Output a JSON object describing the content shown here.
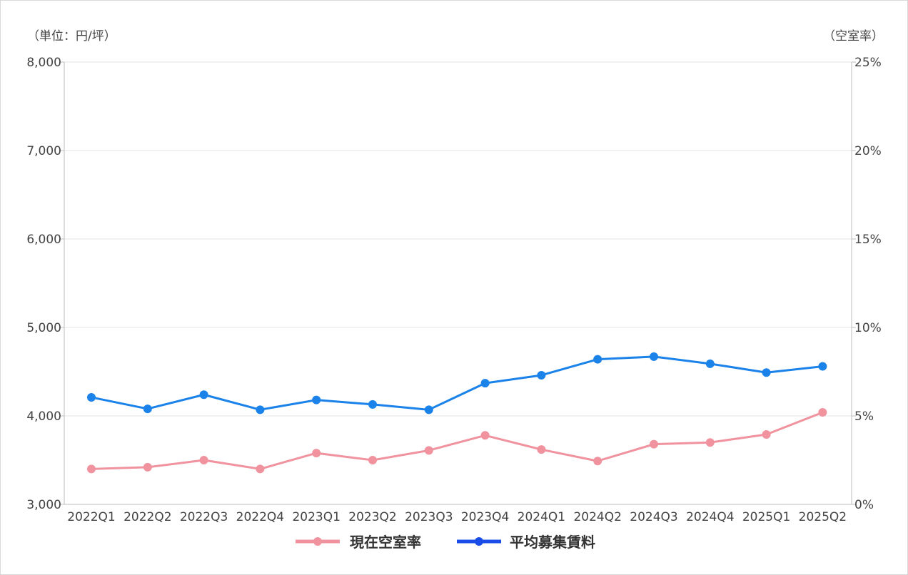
{
  "chart_data": {
    "type": "line",
    "left_unit_label": "（単位：円/坪）",
    "right_unit_label": "（空室率）",
    "categories": [
      "2022Q1",
      "2022Q2",
      "2022Q3",
      "2022Q4",
      "2023Q1",
      "2023Q2",
      "2023Q3",
      "2023Q4",
      "2024Q1",
      "2024Q2",
      "2024Q3",
      "2024Q4",
      "2025Q1",
      "2025Q2"
    ],
    "y_left": {
      "min": 3000,
      "max": 8000,
      "ticks": [
        3000,
        4000,
        5000,
        6000,
        7000,
        8000
      ],
      "tick_labels": [
        "3,000",
        "4,000",
        "5,000",
        "6,000",
        "7,000",
        "8,000"
      ]
    },
    "y_right": {
      "min": 0,
      "max": 25,
      "ticks": [
        0,
        5,
        10,
        15,
        20,
        25
      ],
      "tick_labels": [
        "0%",
        "5%",
        "10%",
        "15%",
        "20%",
        "25%"
      ]
    },
    "grid": true,
    "legend_position": "bottom",
    "series": [
      {
        "name": "現在空室率",
        "axis": "right",
        "color": "#f0939f",
        "values": [
          2.0,
          2.1,
          2.5,
          2.0,
          2.9,
          2.5,
          3.05,
          3.9,
          3.1,
          2.45,
          3.4,
          3.5,
          3.95,
          5.2
        ]
      },
      {
        "name": "平均募集賃料",
        "axis": "left",
        "color": "#1a82e8",
        "legend_color": "#1a4de8",
        "values": [
          4210,
          4080,
          4240,
          4070,
          4180,
          4130,
          4070,
          4370,
          4460,
          4640,
          4670,
          4590,
          4490,
          4560
        ]
      }
    ]
  }
}
